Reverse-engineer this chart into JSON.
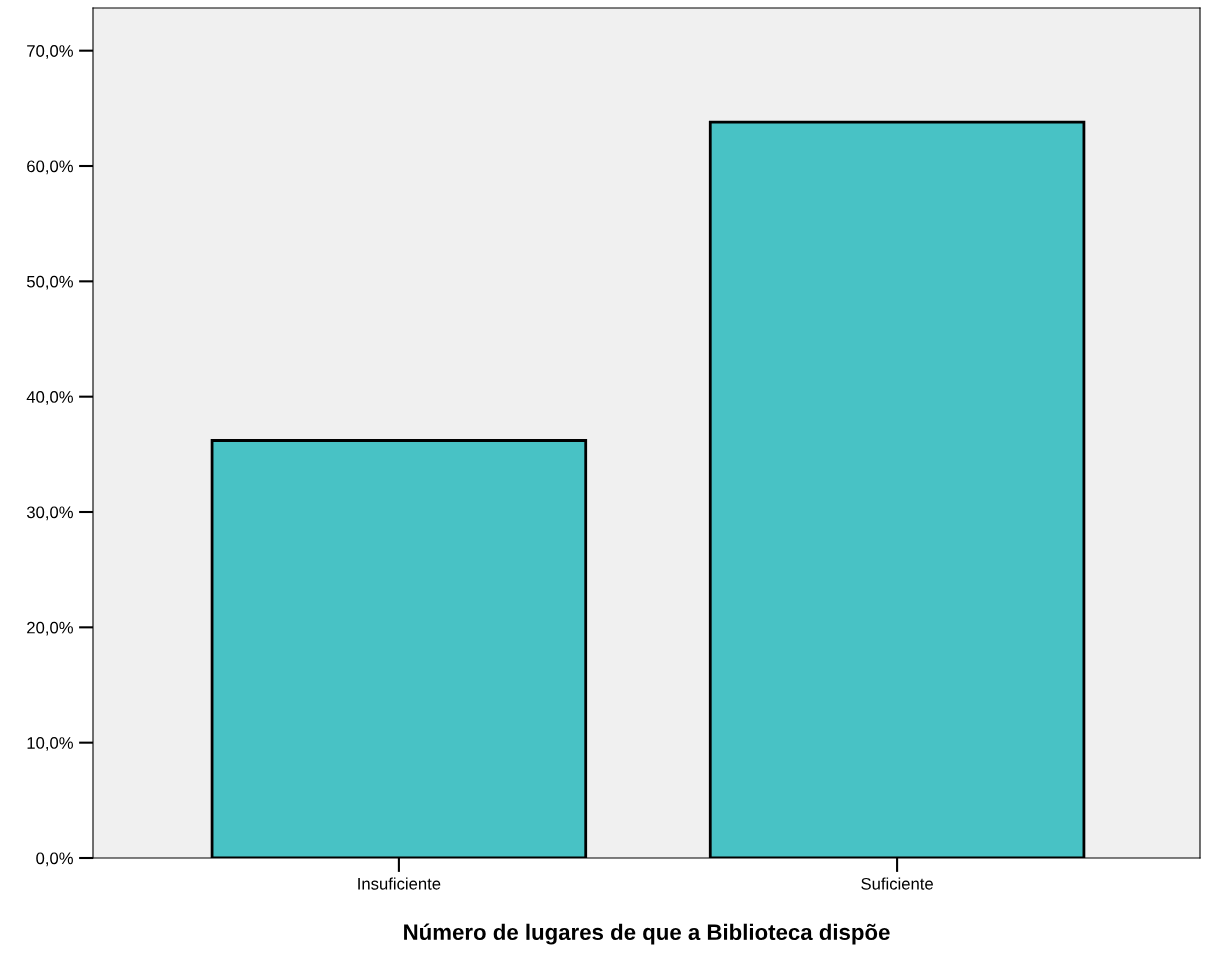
{
  "chart_data": {
    "type": "bar",
    "xlabel": "Número de lugares de que a Biblioteca dispõe",
    "categories": [
      "Insuficiente",
      "Suficiente"
    ],
    "values": [
      36.2,
      63.8
    ],
    "color": "#48c2c5",
    "ylim": [
      0,
      73.7
    ],
    "yticks": [
      {
        "value": 0,
        "label": "0,0%"
      },
      {
        "value": 10,
        "label": "10,0%"
      },
      {
        "value": 20,
        "label": "20,0%"
      },
      {
        "value": 30,
        "label": "30,0%"
      },
      {
        "value": 40,
        "label": "40,0%"
      },
      {
        "value": 50,
        "label": "50,0%"
      },
      {
        "value": 60,
        "label": "60,0%"
      },
      {
        "value": 70,
        "label": "70,0%"
      }
    ],
    "grid": false,
    "legend": false
  }
}
